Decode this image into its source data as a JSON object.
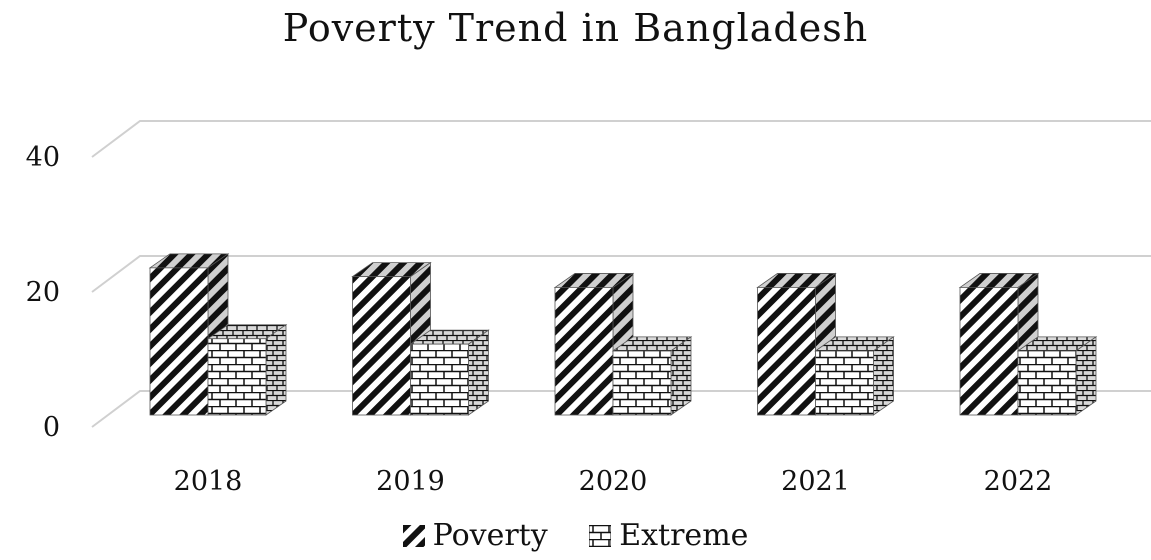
{
  "chart_data": {
    "type": "bar",
    "title": "Poverty Trend in Bangladesh",
    "categories": [
      "2018",
      "2019",
      "2020",
      "2021",
      "2022"
    ],
    "series": [
      {
        "name": "Poverty",
        "values": [
          21.8,
          20.5,
          18.9,
          18.9,
          18.9
        ]
      },
      {
        "name": "Extreme",
        "values": [
          11.3,
          10.5,
          9.5,
          9.5,
          9.5
        ]
      }
    ],
    "ylim": [
      0,
      40
    ],
    "yticks": [
      "0",
      "20",
      "40"
    ],
    "grid": true,
    "legend_position": "bottom",
    "style": "3d-clustered-column"
  }
}
